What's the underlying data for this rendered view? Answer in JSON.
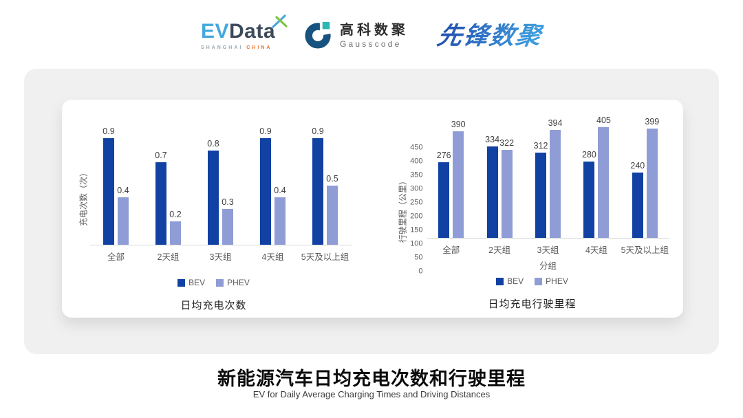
{
  "header": {
    "evdata": {
      "ev": "EV",
      "data": "Data",
      "sub_shanghai": "SHANGHAI",
      "sub_china": "CHINA"
    },
    "gausscode": {
      "cn": "高科数聚",
      "en": "Gausscode"
    },
    "xianfeng": {
      "text": "先锋数聚"
    }
  },
  "colors": {
    "bev": "#1141A3",
    "phev": "#8F9CD6",
    "axis_line": "#D8D8D8",
    "panel_bg": "#F0F0F1",
    "evdata_blue": "#45A8DC",
    "evdata_dark": "#3D4A5B",
    "gausscode_navy": "#17537E",
    "gausscode_teal": "#29B8B5",
    "xianfeng_blue": "#2E72C4"
  },
  "chart_data": [
    {
      "type": "bar",
      "title": "日均充电次数",
      "categories": [
        "全部",
        "2天组",
        "3天组",
        "4天组",
        "5天及以上组"
      ],
      "series": [
        {
          "name": "BEV",
          "color": "#1141A3",
          "values": [
            0.9,
            0.7,
            0.8,
            0.9,
            0.9
          ]
        },
        {
          "name": "PHEV",
          "color": "#8F9CD6",
          "values": [
            0.4,
            0.2,
            0.3,
            0.4,
            0.5
          ]
        }
      ],
      "xlabel": "",
      "ylabel": "充电次数（次）",
      "ylim": [
        0,
        1.1
      ],
      "yticks": [],
      "grid": false,
      "value_labels": true,
      "legend_position": "bottom"
    },
    {
      "type": "bar",
      "title": "日均充电行驶里程",
      "categories": [
        "全部",
        "2天组",
        "3天组",
        "4天组",
        "5天及以上组"
      ],
      "series": [
        {
          "name": "BEV",
          "color": "#1141A3",
          "values": [
            276,
            334,
            312,
            280,
            240
          ]
        },
        {
          "name": "PHEV",
          "color": "#8F9CD6",
          "values": [
            390,
            322,
            394,
            405,
            399
          ]
        }
      ],
      "xlabel": "分组",
      "ylabel": "行驶里程（公里）",
      "ylim": [
        0,
        450
      ],
      "yticks": [
        0,
        50,
        100,
        150,
        200,
        250,
        300,
        350,
        400,
        450
      ],
      "grid": false,
      "value_labels": true,
      "legend_position": "bottom"
    }
  ],
  "footer": {
    "title": "新能源汽车日均充电次数和行驶里程",
    "subtitle": "EV for Daily Average Charging Times and Driving Distances"
  }
}
